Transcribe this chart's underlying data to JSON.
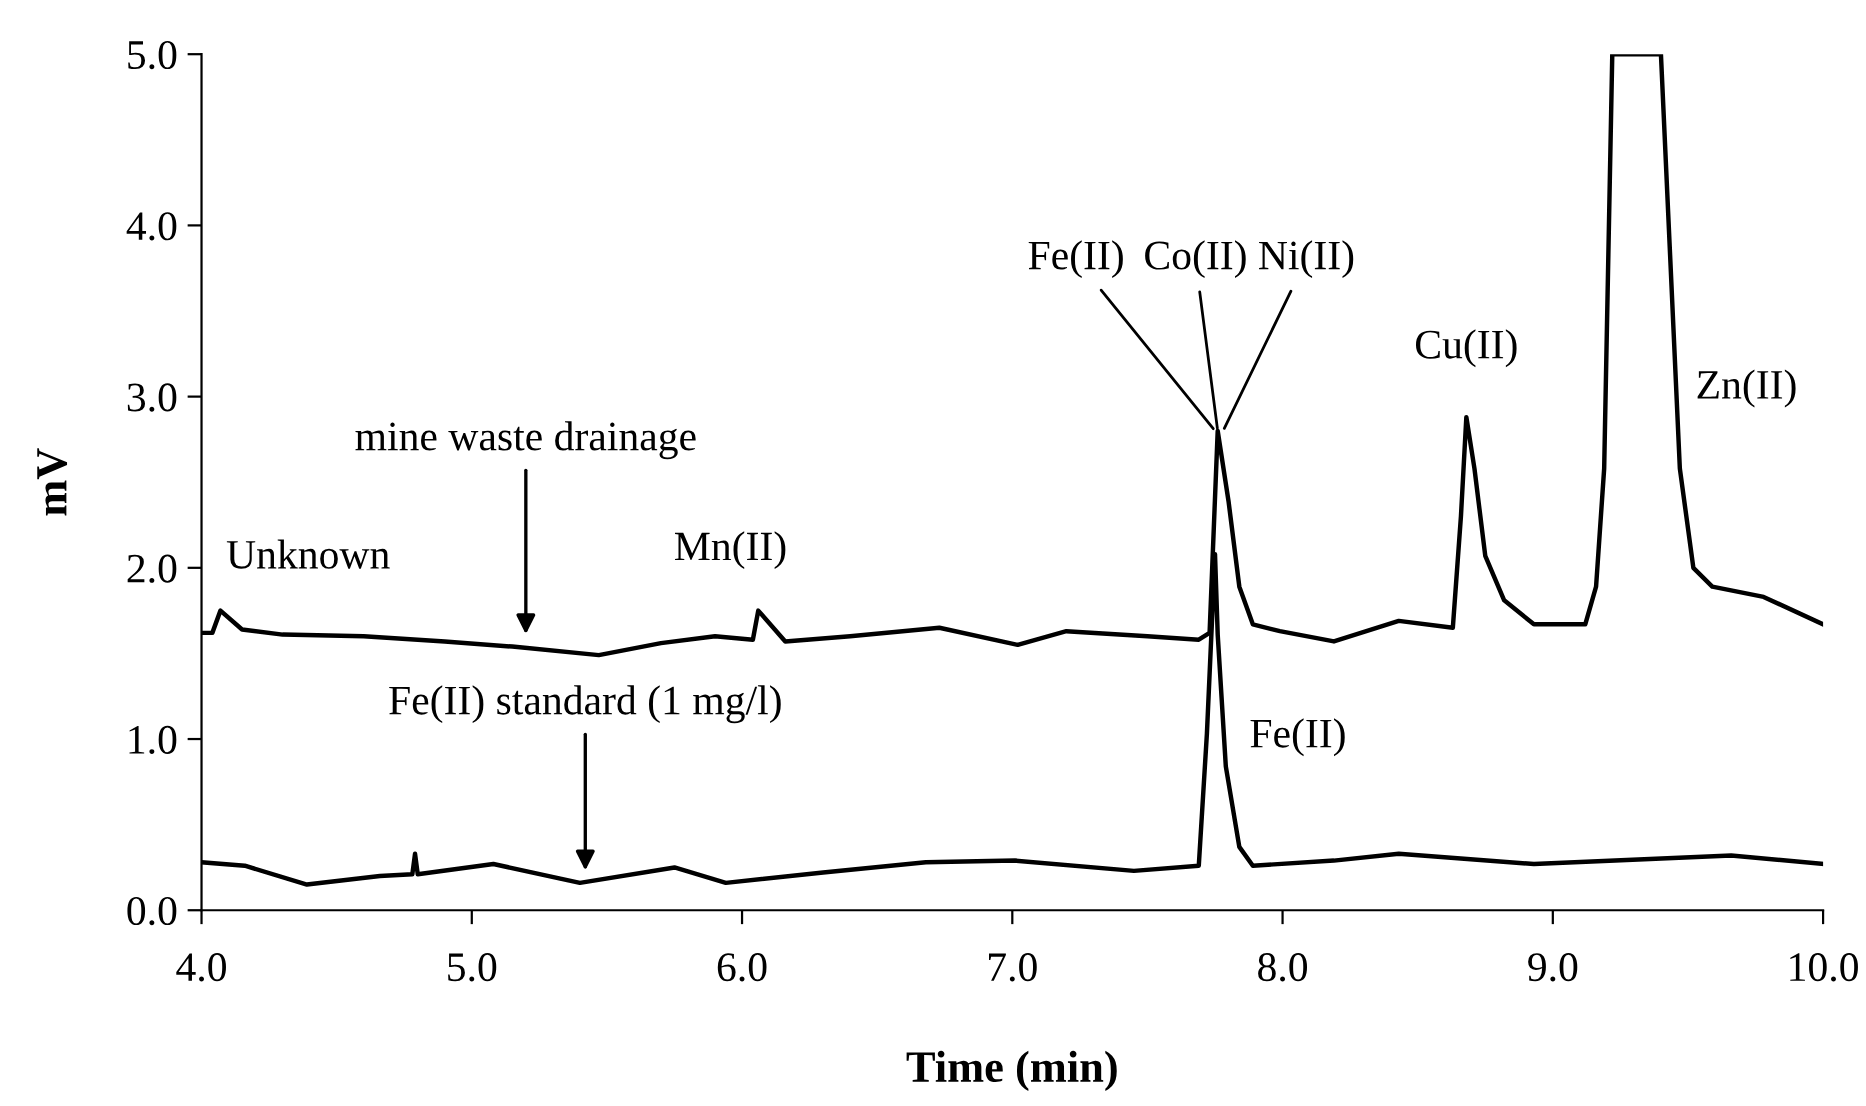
{
  "chart_data": {
    "type": "line",
    "xlabel": "Time (min)",
    "ylabel": "mV",
    "xlim": [
      4.0,
      10.0
    ],
    "ylim": [
      0.0,
      5.0
    ],
    "xticks": [
      {
        "value": 4,
        "label": "4.0"
      },
      {
        "value": 5,
        "label": "5.0"
      },
      {
        "value": 6,
        "label": "6.0"
      },
      {
        "value": 7,
        "label": "7.0"
      },
      {
        "value": 8,
        "label": "8.0"
      },
      {
        "value": 9,
        "label": "9.0"
      },
      {
        "value": 10,
        "label": "10.0"
      }
    ],
    "yticks": [
      {
        "value": 0,
        "label": "0.0"
      },
      {
        "value": 1,
        "label": "1.0"
      },
      {
        "value": 2,
        "label": "2.0"
      },
      {
        "value": 3,
        "label": "3.0"
      },
      {
        "value": 4,
        "label": "4.0"
      },
      {
        "value": 5,
        "label": "5.0"
      }
    ],
    "grid": false,
    "marker": "none",
    "line_style": "solid",
    "series": [
      {
        "color": "#000000",
        "x": [
          4.0,
          4.04,
          4.07,
          4.15,
          4.3,
          4.6,
          4.9,
          5.15,
          5.47,
          5.7,
          5.9,
          6.04,
          6.06,
          6.16,
          6.4,
          6.73,
          7.02,
          7.2,
          7.5,
          7.69,
          7.73,
          7.76,
          7.8,
          7.84,
          7.89,
          7.99,
          8.19,
          8.43,
          8.63,
          8.66,
          8.68,
          8.71,
          8.75,
          8.82,
          8.93,
          9.12,
          9.16,
          9.19,
          9.22,
          9.4,
          9.47,
          9.52,
          9.59,
          9.78,
          10.0
        ],
        "values": [
          1.62,
          1.62,
          1.75,
          1.64,
          1.61,
          1.6,
          1.57,
          1.54,
          1.49,
          1.56,
          1.6,
          1.58,
          1.75,
          1.57,
          1.6,
          1.65,
          1.55,
          1.63,
          1.6,
          1.58,
          1.62,
          2.8,
          2.39,
          1.89,
          1.67,
          1.63,
          1.57,
          1.69,
          1.65,
          2.3,
          2.88,
          2.58,
          2.07,
          1.81,
          1.67,
          1.67,
          1.89,
          2.58,
          5.0,
          5.0,
          2.58,
          2.0,
          1.89,
          1.83,
          1.67
        ]
      },
      {
        "color": "#000000",
        "x": [
          4.0,
          4.16,
          4.39,
          4.66,
          4.78,
          4.79,
          4.8,
          5.08,
          5.4,
          5.75,
          5.94,
          6.3,
          6.68,
          7.01,
          7.45,
          7.69,
          7.72,
          7.75,
          7.76,
          7.79,
          7.84,
          7.89,
          8.19,
          8.43,
          8.93,
          9.66,
          10.0
        ],
        "values": [
          0.28,
          0.26,
          0.15,
          0.2,
          0.21,
          0.33,
          0.21,
          0.27,
          0.16,
          0.25,
          0.16,
          0.22,
          0.28,
          0.29,
          0.23,
          0.26,
          1.03,
          2.08,
          1.61,
          0.84,
          0.37,
          0.26,
          0.29,
          0.33,
          0.27,
          0.32,
          0.27
        ]
      }
    ],
    "annotations": [
      {
        "text": "Unknown",
        "x": 4.07,
        "y": 1.75
      },
      {
        "text": "mine waste drainage",
        "x": 5.2,
        "y": 1.58
      },
      {
        "text": "Mn(II)",
        "x": 6.06,
        "y": 1.75
      },
      {
        "text": "Fe(II)",
        "x": 7.75,
        "y": 2.8
      },
      {
        "text": "Co(II)",
        "x": 7.76,
        "y": 2.8
      },
      {
        "text": "Ni(II)",
        "x": 7.78,
        "y": 2.8
      },
      {
        "text": "Cu(II)",
        "x": 8.68,
        "y": 2.88
      },
      {
        "text": "Zn(II)",
        "x": 9.47,
        "y": 2.58
      },
      {
        "text": "Fe(II) standard (1 mg/l)",
        "x": 5.42,
        "y": 0.2
      },
      {
        "text": "Fe(II)",
        "x": 7.8,
        "y": 0.9
      }
    ]
  }
}
